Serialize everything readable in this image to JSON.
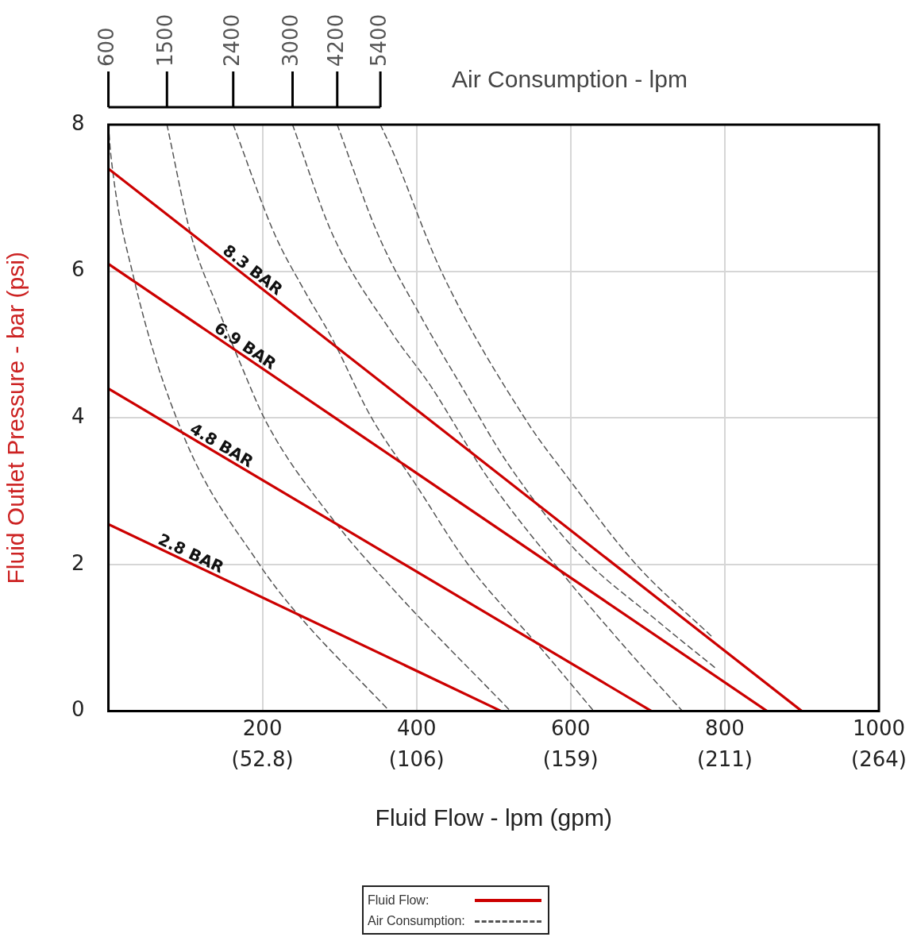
{
  "chart_data": {
    "type": "line",
    "xlabel": "Fluid Flow - lpm (gpm)",
    "ylabel": "Fluid Outlet Pressure - bar (psi)",
    "xlim": [
      0,
      1000
    ],
    "xticks": [
      200,
      400,
      600,
      800,
      1000
    ],
    "x2lim": [
      0,
      264.2
    ],
    "x2ticks": [
      {
        "value": 52.84,
        "label": "(52.8)"
      },
      {
        "value": 105.7,
        "label": "(106)"
      },
      {
        "value": 158.5,
        "label": "(159)"
      },
      {
        "value": 211.4,
        "label": "(211)"
      },
      {
        "value": 264.2,
        "label": "(264)"
      }
    ],
    "ylim": [
      0,
      8
    ],
    "yticks": [
      0,
      2,
      4,
      6,
      8
    ],
    "grid": true,
    "legend": false,
    "marker": "none",
    "annotations": [
      "Air Consumption - lpm",
      "Fluid Flow:",
      "Air Consumption:"
    ],
    "series": [
      {
        "name": "8.3 BAR",
        "color": "#cc0000",
        "line_style": "solid",
        "x": [
          0,
          900
        ],
        "values": [
          7.4,
          0
        ]
      },
      {
        "name": "6.9 BAR",
        "color": "#cc0000",
        "line_style": "solid",
        "x": [
          0,
          855
        ],
        "values": [
          6.1,
          0
        ]
      },
      {
        "name": "4.8 BAR",
        "color": "#cc0000",
        "line_style": "solid",
        "x": [
          0,
          705
        ],
        "values": [
          4.4,
          0
        ]
      },
      {
        "name": "2.8 BAR",
        "color": "#cc0000",
        "line_style": "solid",
        "x": [
          0,
          510
        ],
        "values": [
          2.55,
          0
        ]
      },
      {
        "name": "600",
        "color": "#555555",
        "line_style": "dashed",
        "x": [
          0,
          3,
          32,
          97,
          196,
          241,
          365
        ],
        "values": [
          8,
          7.6,
          5.95,
          3.77,
          2.0,
          1.38,
          0
        ]
      },
      {
        "name": "1500",
        "color": "#555555",
        "line_style": "dashed",
        "x": [
          76,
          107,
          142,
          171,
          206,
          291,
          368,
          522
        ],
        "values": [
          8,
          6.5,
          5.5,
          4.75,
          3.92,
          2.62,
          1.68,
          0
        ]
      },
      {
        "name": "2400",
        "color": "#555555",
        "line_style": "dashed",
        "x": [
          162,
          216,
          251,
          291,
          340,
          399,
          467,
          566,
          630
        ],
        "values": [
          8,
          6.5,
          5.8,
          5.07,
          4.03,
          3.09,
          2.0,
          0.8,
          0
        ]
      },
      {
        "name": "3000",
        "color": "#555555",
        "line_style": "dashed",
        "x": [
          239,
          291,
          368,
          418,
          492,
          596,
          685,
          745
        ],
        "values": [
          8,
          6.5,
          5.16,
          4.44,
          3.19,
          1.79,
          0.7,
          0
        ]
      },
      {
        "name": "4200",
        "color": "#555555",
        "line_style": "dashed",
        "x": [
          297,
          350,
          410,
          460,
          517,
          606,
          715,
          790
        ],
        "values": [
          8,
          6.5,
          5.3,
          4.4,
          3.4,
          2.2,
          1.21,
          0.57
        ]
      },
      {
        "name": "5400",
        "color": "#555555",
        "line_style": "dashed",
        "x": [
          353,
          368,
          432,
          542,
          596,
          685,
          785
        ],
        "values": [
          8,
          7.66,
          6.0,
          3.97,
          3.19,
          2.0,
          1.0
        ]
      }
    ]
  }
}
